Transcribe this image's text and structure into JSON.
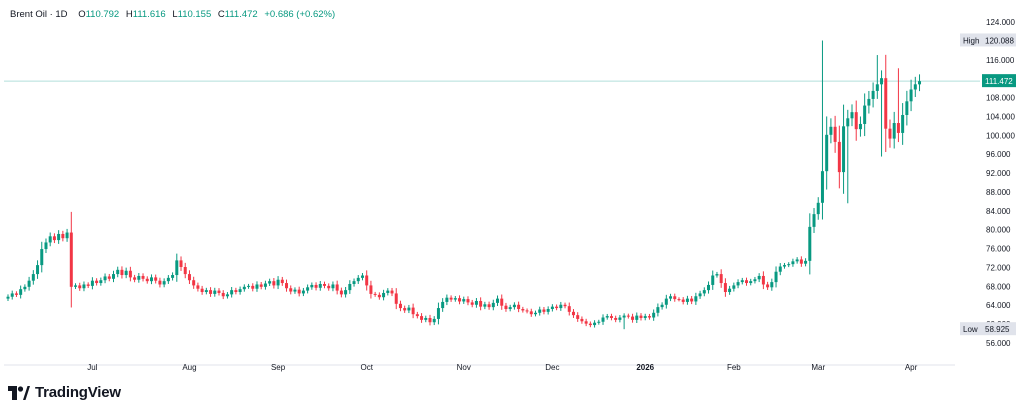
{
  "header": {
    "symbol": "Brent Oil · 1D",
    "o_label": "O",
    "o_value": "110.792",
    "h_label": "H",
    "h_value": "111.616",
    "l_label": "L",
    "l_value": "110.155",
    "c_label": "C",
    "c_value": "111.472",
    "change": "+0.686 (+0.62%)"
  },
  "brand": {
    "name": "TradingView"
  },
  "colors": {
    "up": "#089981",
    "down": "#f23645",
    "last_line": "#b2dfdb",
    "badge": "#089981",
    "label_bg": "#e0e3eb"
  },
  "chart_data": {
    "type": "candlestick",
    "y_ticks": [
      "124.000",
      "120.000",
      "116.000",
      "112.000",
      "108.000",
      "104.000",
      "100.000",
      "96.000",
      "92.000",
      "88.000",
      "84.000",
      "80.000",
      "76.000",
      "72.000",
      "68.000",
      "64.000",
      "60.000",
      "56.000"
    ],
    "ylim": [
      54.5,
      125.5
    ],
    "x_labels": [
      {
        "label": "Jul",
        "index": 20
      },
      {
        "label": "Aug",
        "index": 43
      },
      {
        "label": "Sep",
        "index": 64
      },
      {
        "label": "Oct",
        "index": 85
      },
      {
        "label": "Nov",
        "index": 108
      },
      {
        "label": "Dec",
        "index": 129
      },
      {
        "label": "2026",
        "index": 151
      },
      {
        "label": "Feb",
        "index": 172
      },
      {
        "label": "Mar",
        "index": 192
      },
      {
        "label": "Apr",
        "index": 214
      }
    ],
    "high_label": "High",
    "high_value": 120.088,
    "high_text": "120.088",
    "low_label": "Low",
    "low_value": 58.925,
    "low_text": "58.925",
    "last_price": 111.472,
    "last_text": "111.472",
    "closes": [
      65.8,
      66.5,
      66.2,
      67.4,
      67.9,
      69.2,
      70.6,
      72.5,
      75.9,
      77.3,
      78.6,
      77.8,
      79.1,
      78.2,
      79.4,
      67.9,
      68.2,
      67.6,
      68.4,
      68.1,
      69.2,
      68.7,
      69.3,
      70.1,
      69.6,
      70.6,
      71.5,
      70.4,
      71.3,
      69.9,
      69.4,
      70.2,
      69.6,
      69.1,
      69.9,
      69.2,
      68.4,
      69.1,
      69.8,
      70.4,
      73.5,
      72.1,
      70.6,
      69.3,
      68.2,
      67.5,
      66.8,
      67.2,
      66.4,
      67.1,
      66.6,
      65.9,
      66.3,
      67.2,
      66.8,
      67.4,
      67.9,
      68.1,
      67.5,
      68.4,
      67.9,
      68.6,
      69.1,
      68.2,
      69.4,
      68.7,
      67.6,
      66.9,
      67.3,
      66.5,
      67.1,
      67.8,
      68.3,
      67.7,
      68.5,
      68.1,
      67.6,
      68.4,
      67.1,
      66.3,
      67.2,
      68.5,
      69.1,
      69.8,
      70.3,
      68.2,
      66.4,
      66.2,
      65.7,
      66.6,
      67.1,
      66.5,
      64.3,
      63.4,
      62.9,
      63.5,
      62.1,
      61.7,
      60.9,
      61.3,
      60.4,
      61.1,
      63.4,
      64.7,
      65.6,
      65.2,
      65.5,
      64.8,
      65.3,
      64.6,
      64.1,
      64.9,
      63.7,
      64.2,
      63.6,
      64.5,
      65.4,
      63.9,
      63.2,
      63.6,
      64.1,
      63.2,
      62.9,
      62.7,
      62.1,
      62.4,
      63.1,
      62.6,
      63.2,
      63.7,
      63.4,
      64.1,
      63.8,
      62.6,
      61.9,
      61.1,
      60.6,
      60.1,
      59.8,
      60.3,
      60.5,
      61.4,
      61.7,
      61.3,
      60.9,
      61.4,
      61.8,
      61.6,
      60.9,
      61.8,
      61.3,
      61.7,
      61.4,
      62.4,
      63.6,
      64.1,
      65.4,
      65.9,
      65.3,
      65.2,
      64.7,
      65.4,
      64.8,
      65.9,
      66.5,
      67.2,
      68.3,
      70.3,
      70.6,
      68.7,
      66.8,
      67.5,
      68.2,
      68.9,
      69.3,
      68.7,
      69.1,
      69.5,
      70.2,
      68.4,
      67.8,
      68.9,
      71.1,
      72.2,
      72.5,
      72.7,
      73.3,
      73.7,
      72.8,
      73.4,
      80.6,
      83.3,
      85.7,
      92.4,
      100.1,
      101.8,
      98.6,
      92.2,
      101.9,
      103.6,
      104.9,
      101.3,
      102.4,
      106.3,
      107.7,
      109.4,
      110.8,
      112.1,
      101.4,
      99.3,
      102.6,
      100.5,
      104.3,
      107.2,
      109.7,
      110.8,
      111.472
    ],
    "candles_note": "daily OHLC generated from closes with visible wicks",
    "special_wicks": [
      {
        "index": 193,
        "high": 120.088
      },
      {
        "index": 199,
        "low": 85.6
      },
      {
        "index": 206,
        "high": 117.0
      },
      {
        "index": 207,
        "low": 95.5
      },
      {
        "index": 210,
        "low": 97.2
      },
      {
        "index": 211,
        "high": 114.2
      },
      {
        "index": 146,
        "low": 58.925
      }
    ]
  }
}
